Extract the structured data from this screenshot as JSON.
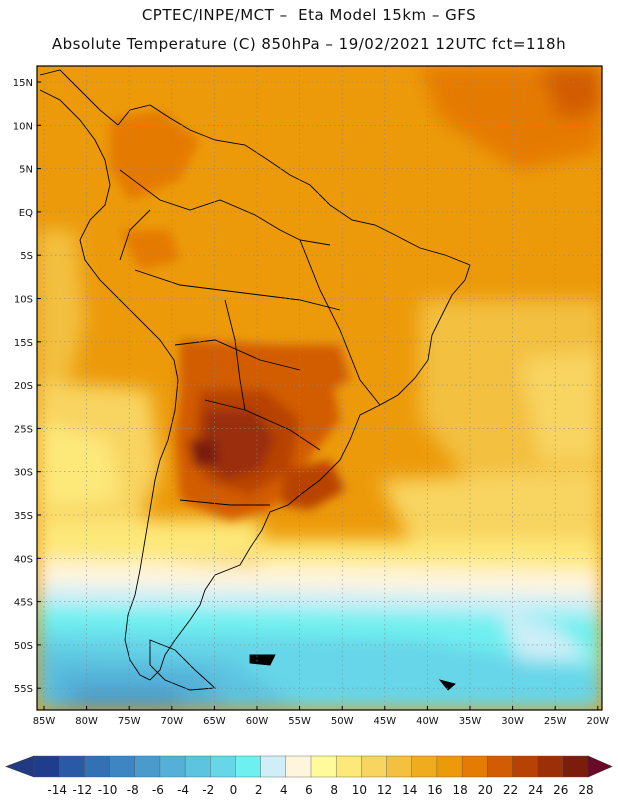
{
  "title_line1": "CPTEC/INPE/MCT –  Eta Model 15km – GFS",
  "title_line2": "Absolute Temperature (C) 850hPa – 19/02/2021 12UTC fct=118h",
  "lat_labels": [
    "15N",
    "10N",
    "5N",
    "EQ",
    "5S",
    "10S",
    "15S",
    "20S",
    "25S",
    "30S",
    "35S",
    "40S",
    "45S",
    "50S",
    "55S"
  ],
  "lon_labels": [
    "85W",
    "80W",
    "75W",
    "70W",
    "65W",
    "60W",
    "55W",
    "50W",
    "45W",
    "40W",
    "35W",
    "30W",
    "25W",
    "20W"
  ],
  "colorbar": {
    "ticks": [
      "-14",
      "-12",
      "-10",
      "-8",
      "-6",
      "-4",
      "-2",
      "0",
      "2",
      "4",
      "6",
      "8",
      "10",
      "12",
      "14",
      "16",
      "18",
      "20",
      "22",
      "24",
      "26",
      "28"
    ],
    "colors": [
      "#1f3d8c",
      "#2a5aa6",
      "#3271b4",
      "#3d86c1",
      "#4a9bcb",
      "#55b0d8",
      "#5cc3e0",
      "#66d6e8",
      "#6ff0f0",
      "#cfeef8",
      "#fff5dc",
      "#fffb9a",
      "#fde87a",
      "#f8d460",
      "#f3c040",
      "#eeac1e",
      "#ec9a0a",
      "#e57a05",
      "#d25c04",
      "#b84205",
      "#9a2f08",
      "#7a1d0a"
    ],
    "under_color": "#223a82",
    "over_color": "#6a0a28"
  }
}
